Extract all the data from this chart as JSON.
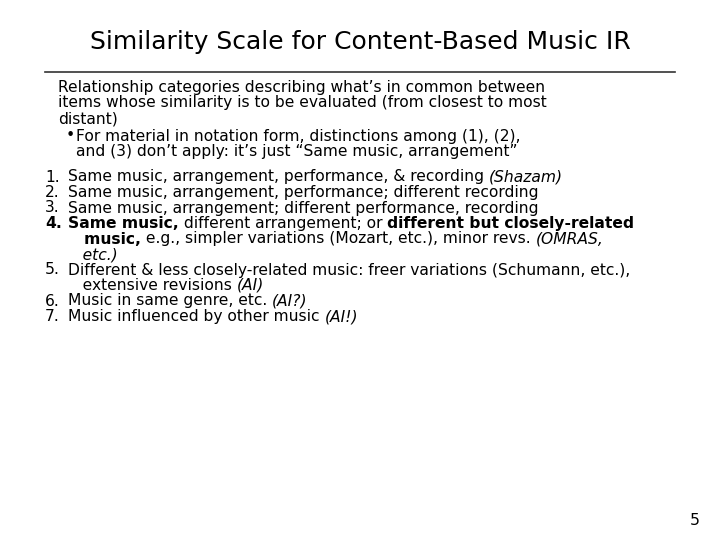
{
  "title": "Similarity Scale for Content-Based Music IR",
  "background_color": "#ffffff",
  "text_color": "#000000",
  "title_fontsize": 18,
  "body_fontsize": 11.2,
  "page_number": "5",
  "intro_lines": [
    "Relationship categories describing what’s in common between",
    "items whose similarity is to be evaluated (from closest to most",
    "distant)"
  ],
  "bullet_lines": [
    "For material in notation form, distinctions among (1), (2),",
    "and (3) don’t apply: it’s just “Same music, arrangement”"
  ]
}
